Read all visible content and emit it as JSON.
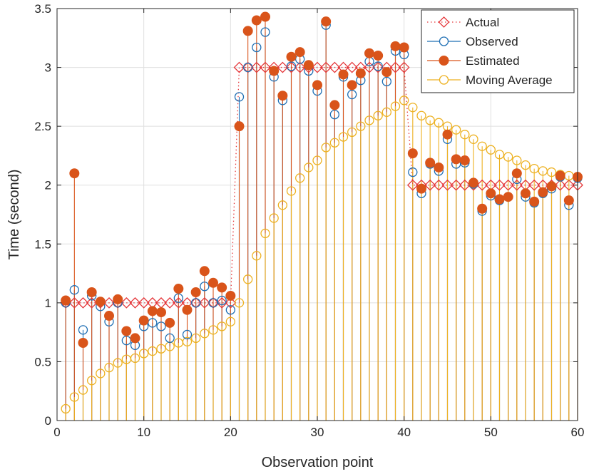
{
  "chart_data": {
    "type": "stem",
    "xlabel": "Observation point",
    "ylabel": "Time (second)",
    "xlim": [
      0,
      60
    ],
    "ylim": [
      0,
      3.5
    ],
    "xticks": [
      0,
      10,
      20,
      30,
      40,
      50,
      60
    ],
    "yticks": [
      0,
      0.5,
      1,
      1.5,
      2,
      2.5,
      3,
      3.5
    ],
    "xtick_labels": [
      "0",
      "10",
      "20",
      "30",
      "40",
      "50",
      "60"
    ],
    "ytick_labels": [
      "0",
      "0.5",
      "1",
      "1.5",
      "2",
      "2.5",
      "3",
      "3.5"
    ],
    "grid": true,
    "legend_position": "top-right",
    "x": [
      1,
      2,
      3,
      4,
      5,
      6,
      7,
      8,
      9,
      10,
      11,
      12,
      13,
      14,
      15,
      16,
      17,
      18,
      19,
      20,
      21,
      22,
      23,
      24,
      25,
      26,
      27,
      28,
      29,
      30,
      31,
      32,
      33,
      34,
      35,
      36,
      37,
      38,
      39,
      40,
      41,
      42,
      43,
      44,
      45,
      46,
      47,
      48,
      49,
      50,
      51,
      52,
      53,
      54,
      55,
      56,
      57,
      58,
      59,
      60
    ],
    "series": [
      {
        "name": "Actual",
        "style": "dotted-line-diamond",
        "color": "#e5373a",
        "values": [
          1,
          1,
          1,
          1,
          1,
          1,
          1,
          1,
          1,
          1,
          1,
          1,
          1,
          1,
          1,
          1,
          1,
          1,
          1,
          1,
          3,
          3,
          3,
          3,
          3,
          3,
          3,
          3,
          3,
          3,
          3,
          3,
          3,
          3,
          3,
          3,
          3,
          3,
          3,
          3,
          2,
          2,
          2,
          2,
          2,
          2,
          2,
          2,
          2,
          2,
          2,
          2,
          2,
          2,
          2,
          2,
          2,
          2,
          2,
          2
        ]
      },
      {
        "name": "Observed",
        "style": "stem-open-circle",
        "color": "#1f6fb4",
        "values": [
          1.0,
          1.11,
          0.77,
          1.06,
          0.97,
          0.84,
          1.0,
          0.68,
          0.64,
          0.8,
          0.83,
          0.8,
          0.7,
          1.04,
          0.73,
          1.0,
          1.14,
          1.0,
          1.02,
          0.94,
          2.75,
          3.0,
          3.17,
          3.3,
          2.92,
          2.72,
          3.01,
          3.07,
          2.97,
          2.8,
          3.36,
          2.6,
          2.92,
          2.77,
          2.89,
          3.05,
          3.01,
          2.88,
          3.14,
          3.11,
          2.11,
          1.93,
          2.18,
          2.12,
          2.39,
          2.18,
          2.19,
          2.01,
          1.78,
          1.91,
          1.87,
          1.9,
          2.05,
          1.9,
          1.85,
          1.93,
          1.97,
          2.07,
          1.83,
          2.06
        ]
      },
      {
        "name": "Estimated",
        "style": "stem-filled-circle",
        "color": "#d9541a",
        "values": [
          1.02,
          2.1,
          0.66,
          1.09,
          1.01,
          0.89,
          1.03,
          0.76,
          0.7,
          0.85,
          0.93,
          0.92,
          0.83,
          1.12,
          0.94,
          1.09,
          1.27,
          1.17,
          1.13,
          1.06,
          2.5,
          3.31,
          3.4,
          3.43,
          2.97,
          2.76,
          3.09,
          3.13,
          3.02,
          2.85,
          3.39,
          2.68,
          2.94,
          2.85,
          2.95,
          3.12,
          3.1,
          2.96,
          3.18,
          3.17,
          2.27,
          1.97,
          2.19,
          2.15,
          2.43,
          2.22,
          2.21,
          2.02,
          1.8,
          1.93,
          1.88,
          1.9,
          2.1,
          1.93,
          1.86,
          1.94,
          1.99,
          2.08,
          1.87,
          2.07
        ]
      },
      {
        "name": "Moving Average",
        "style": "stem-open-circle",
        "color": "#edb120",
        "values": [
          0.1,
          0.2,
          0.26,
          0.34,
          0.4,
          0.45,
          0.49,
          0.52,
          0.53,
          0.57,
          0.59,
          0.61,
          0.63,
          0.66,
          0.67,
          0.7,
          0.74,
          0.77,
          0.8,
          0.84,
          1.0,
          1.2,
          1.4,
          1.59,
          1.72,
          1.83,
          1.95,
          2.06,
          2.15,
          2.21,
          2.32,
          2.36,
          2.41,
          2.45,
          2.5,
          2.55,
          2.59,
          2.62,
          2.67,
          2.72,
          2.66,
          2.59,
          2.55,
          2.53,
          2.5,
          2.47,
          2.43,
          2.39,
          2.33,
          2.3,
          2.26,
          2.24,
          2.21,
          2.17,
          2.14,
          2.12,
          2.11,
          2.09,
          2.08,
          2.07
        ]
      }
    ]
  }
}
